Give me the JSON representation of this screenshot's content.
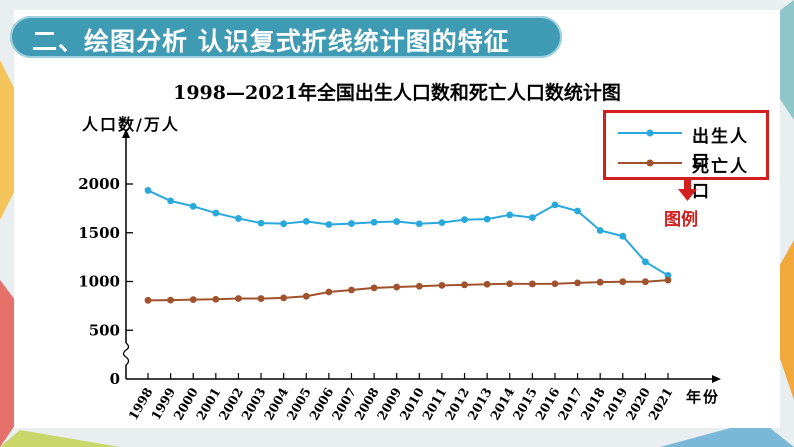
{
  "banner": {
    "title": "二、绘图分析 认识复式折线统计图的特征"
  },
  "legend_note": "图例",
  "colors": {
    "birth": "#29a8dc",
    "death": "#a0522d",
    "banner": "#3f9ab4",
    "legend_border": "#d11e1e"
  },
  "chart_data": {
    "type": "line",
    "title": "1998—2021年全国出生人口数和死亡人口数统计图",
    "ylabel": "人口数/万人",
    "xlabel": "年份",
    "yticks": [
      "0",
      "500",
      "1000",
      "1500",
      "2000"
    ],
    "ylim": [
      0,
      2000
    ],
    "y_axis_break": true,
    "grid": false,
    "legend_position": "top-right",
    "categories": [
      "1998",
      "1999",
      "2000",
      "2001",
      "2002",
      "2003",
      "2004",
      "2005",
      "2006",
      "2007",
      "2008",
      "2009",
      "2010",
      "2011",
      "2012",
      "2013",
      "2014",
      "2015",
      "2016",
      "2017",
      "2018",
      "2019",
      "2020",
      "2021"
    ],
    "series": [
      {
        "name": "出生人口",
        "values": [
          1934,
          1827,
          1771,
          1702,
          1647,
          1599,
          1593,
          1617,
          1585,
          1594,
          1608,
          1615,
          1592,
          1604,
          1635,
          1640,
          1683,
          1655,
          1786,
          1723,
          1523,
          1465,
          1202,
          1062
        ]
      },
      {
        "name": "死亡人口",
        "values": [
          807,
          809,
          814,
          818,
          826,
          825,
          832,
          849,
          892,
          913,
          935,
          943,
          951,
          960,
          966,
          972,
          977,
          975,
          977,
          986,
          993,
          998,
          998,
          1014
        ]
      }
    ]
  }
}
